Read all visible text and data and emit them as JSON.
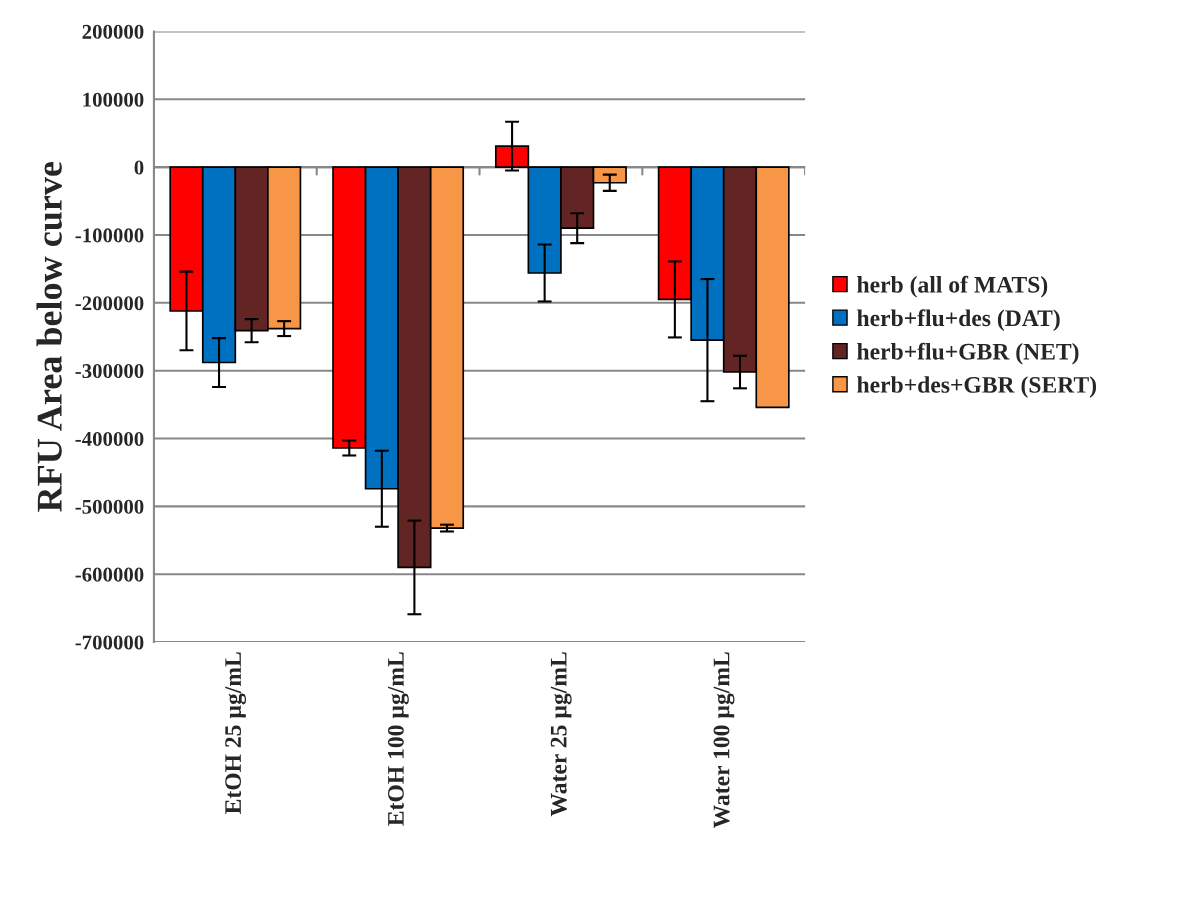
{
  "chart_data": {
    "type": "bar",
    "ylabel": "RFU Area below curve",
    "categories": [
      "EtOH 25 µg/mL",
      "EtOH 100 µg/mL",
      "Water 25 µg/mL",
      "Water 100 µg/mL"
    ],
    "series": [
      {
        "name": "herb (all of MATS)",
        "color": "#ff0000",
        "values": [
          -212000,
          -414000,
          31000,
          -195000
        ],
        "errors": [
          58000,
          11000,
          36000,
          56000
        ]
      },
      {
        "name": "herb+flu+des (DAT)",
        "color": "#0070c0",
        "values": [
          -288000,
          -474000,
          -156000,
          -255000
        ],
        "errors": [
          36000,
          56000,
          42000,
          90000
        ]
      },
      {
        "name": "herb+flu+GBR (NET)",
        "color": "#632523",
        "values": [
          -241000,
          -590000,
          -90000,
          -302000
        ],
        "errors": [
          17000,
          69000,
          22000,
          24000
        ]
      },
      {
        "name": "herb+des+GBR (SERT)",
        "color": "#f79646",
        "values": [
          -238000,
          -532000,
          -23000,
          -354000
        ],
        "errors": [
          11000,
          5000,
          12000,
          null
        ]
      }
    ],
    "ylim": [
      -700000,
      200000
    ],
    "yticks": [
      -700000,
      -600000,
      -500000,
      -400000,
      -300000,
      -200000,
      -100000,
      0,
      100000,
      200000
    ],
    "grid": "y",
    "legend": "right"
  }
}
